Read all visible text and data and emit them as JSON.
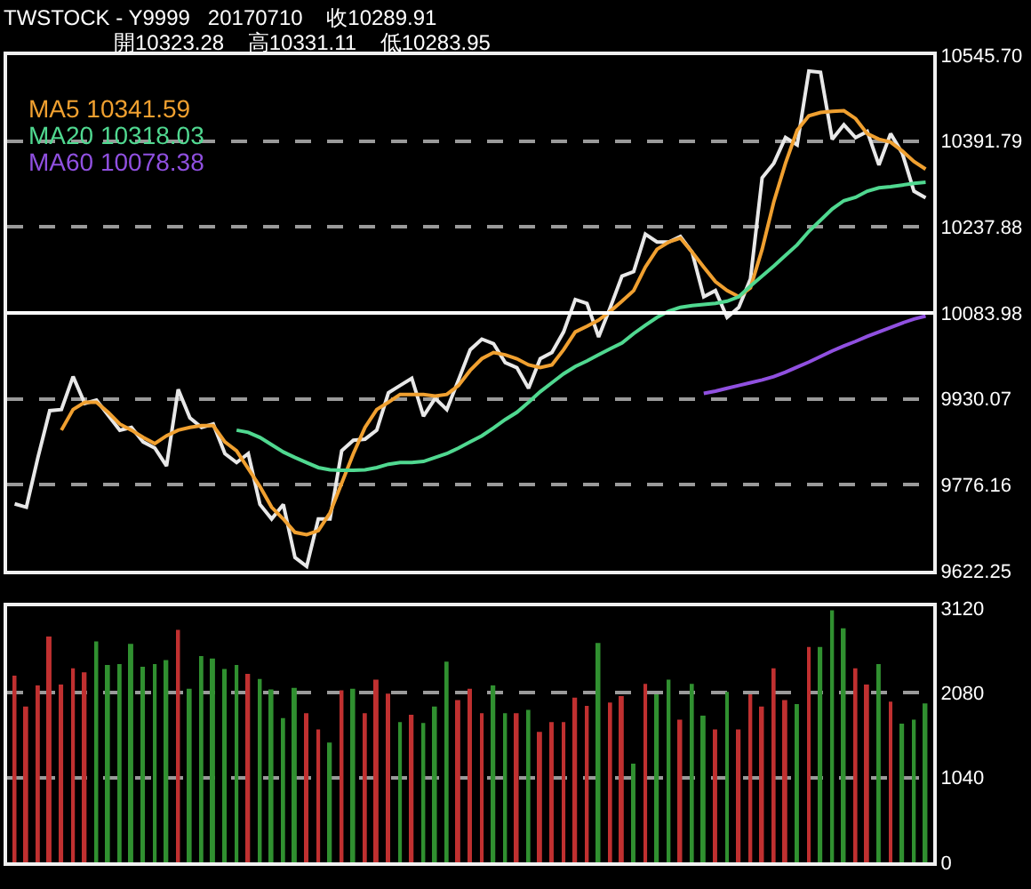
{
  "chart_data": [
    {
      "type": "line",
      "title": "TWSTOCK - Y9999   20170710    收10289.91",
      "subtitle": "開10323.28    高10331.11    低10283.95",
      "categories": [
        null,
        null,
        null,
        null,
        null,
        null,
        null,
        null,
        null,
        null,
        null,
        null,
        null,
        null,
        null,
        null,
        null,
        null,
        null,
        null,
        null,
        null,
        null,
        null,
        null,
        null,
        null,
        null,
        null,
        null,
        null,
        null,
        null,
        null,
        null,
        null,
        null,
        null,
        null,
        null,
        null,
        null,
        null,
        null,
        null,
        null,
        null,
        null,
        null,
        null,
        null,
        null,
        null,
        null,
        null,
        null,
        null,
        null,
        null,
        null,
        null,
        null,
        null,
        null,
        null,
        null,
        null,
        null,
        null,
        null,
        null,
        null,
        null,
        null,
        null,
        null,
        null,
        null,
        null
      ],
      "series": [
        {
          "color": "#e8e8e8",
          "values": [
            9742,
            9736,
            9826,
            9909,
            9911,
            9970,
            9922,
            9928,
            9901,
            9874,
            9879,
            9853,
            9842,
            9810,
            9947,
            9896,
            9879,
            9885,
            9832,
            9816,
            9832,
            9741,
            9715,
            9741,
            9646,
            9630,
            9715,
            9715,
            9837,
            9856,
            9858,
            9874,
            9941,
            9954,
            9967,
            9899,
            9931,
            9911,
            9964,
            10018,
            10037,
            10029,
            9995,
            9986,
            9949,
            10002,
            10013,
            10050,
            10108,
            10101,
            10041,
            10094,
            10150,
            10158,
            10225,
            10211,
            10211,
            10221,
            10193,
            10113,
            10124,
            10076,
            10094,
            10145,
            10326,
            10352,
            10398,
            10385,
            10517,
            10515,
            10395,
            10421,
            10398,
            10409,
            10349,
            10405,
            10370,
            10302,
            10290
          ]
        },
        {
          "name": "MA5 10341.59",
          "color": "#f0a030",
          "values": [
            null,
            null,
            null,
            null,
            9874,
            9911,
            9924,
            9924,
            9906,
            9885,
            9874,
            9861,
            9850,
            9864,
            9874,
            9879,
            9882,
            9882,
            9853,
            9837,
            9805,
            9773,
            9736,
            9715,
            9691,
            9687,
            9694,
            9726,
            9779,
            9832,
            9879,
            9911,
            9924,
            9938,
            9938,
            9938,
            9935,
            9938,
            9954,
            9981,
            10002,
            10013,
            10009,
            10002,
            9991,
            9986,
            9991,
            10018,
            10050,
            10060,
            10071,
            10087,
            10105,
            10124,
            10166,
            10198,
            10211,
            10218,
            10193,
            10166,
            10140,
            10124,
            10113,
            10129,
            10198,
            10283,
            10352,
            10411,
            10437,
            10443,
            10445,
            10446,
            10432,
            10405,
            10395,
            10390,
            10374,
            10355,
            10341.59
          ]
        },
        {
          "name": "MA20 10318.03",
          "color": "#50d890",
          "values": [
            null,
            null,
            null,
            null,
            null,
            null,
            null,
            null,
            null,
            null,
            null,
            null,
            null,
            null,
            null,
            null,
            null,
            null,
            null,
            9874,
            9870,
            9861,
            9848,
            9835,
            9825,
            9816,
            9807,
            9803,
            9802,
            9802,
            9803,
            9807,
            9813,
            9816,
            9816,
            9818,
            9825,
            9832,
            9842,
            9853,
            9864,
            9878,
            9893,
            9906,
            9924,
            9943,
            9959,
            9975,
            9988,
            9998,
            10009,
            10020,
            10030,
            10047,
            10062,
            10076,
            10087,
            10094,
            10097,
            10099,
            10101,
            10105,
            10113,
            10132,
            10150,
            10168,
            10187,
            10206,
            10230,
            10250,
            10270,
            10285,
            10291,
            10302,
            10308,
            10310,
            10313,
            10316,
            10318.03
          ]
        },
        {
          "name": "MA60 10078.38",
          "color": "#9050e0",
          "values": [
            null,
            null,
            null,
            null,
            null,
            null,
            null,
            null,
            null,
            null,
            null,
            null,
            null,
            null,
            null,
            null,
            null,
            null,
            null,
            null,
            null,
            null,
            null,
            null,
            null,
            null,
            null,
            null,
            null,
            null,
            null,
            null,
            null,
            null,
            null,
            null,
            null,
            null,
            null,
            null,
            null,
            null,
            null,
            null,
            null,
            null,
            null,
            null,
            null,
            null,
            null,
            null,
            null,
            null,
            null,
            null,
            null,
            null,
            null,
            9940,
            9944,
            9949,
            9954,
            9959,
            9964,
            9970,
            9978,
            9987,
            9996,
            10006,
            10016,
            10025,
            10033,
            10042,
            10050,
            10058,
            10066,
            10073,
            10078.38
          ]
        }
      ],
      "ylim": [
        9622.25,
        10545.7
      ],
      "yticks": [
        {
          "value": 9622.25,
          "label": "9622.25"
        },
        {
          "value": 9776.16,
          "label": "9776.16"
        },
        {
          "value": 9930.07,
          "label": "9930.07"
        },
        {
          "value": 10083.98,
          "label": "10083.98"
        },
        {
          "value": 10237.88,
          "label": "10237.88"
        },
        {
          "value": 10391.79,
          "label": "10391.79"
        },
        {
          "value": 10545.7,
          "label": "10545.70"
        }
      ],
      "ref_lines": [
        {
          "axis": "y",
          "value": 10083.98,
          "color": "#ffffff"
        }
      ],
      "grid": "y",
      "legend": false,
      "tick_labels": "y"
    },
    {
      "type": "bar",
      "categories": [
        null,
        null,
        null,
        null,
        null,
        null,
        null,
        null,
        null,
        null,
        null,
        null,
        null,
        null,
        null,
        null,
        null,
        null,
        null,
        null,
        null,
        null,
        null,
        null,
        null,
        null,
        null,
        null,
        null,
        null,
        null,
        null,
        null,
        null,
        null,
        null,
        null,
        null,
        null,
        null,
        null,
        null,
        null,
        null,
        null,
        null,
        null,
        null,
        null,
        null,
        null,
        null,
        null,
        null,
        null,
        null,
        null,
        null,
        null,
        null,
        null,
        null,
        null,
        null,
        null,
        null,
        null,
        null,
        null,
        null,
        null,
        null,
        null,
        null,
        null,
        null,
        null,
        null,
        null
      ],
      "values": [
        2290,
        1910,
        2170,
        2770,
        2180,
        2380,
        2330,
        2710,
        2420,
        2430,
        2680,
        2400,
        2430,
        2480,
        2850,
        2130,
        2530,
        2500,
        2370,
        2420,
        2310,
        2250,
        2120,
        1770,
        2140,
        1830,
        1630,
        1470,
        2110,
        2130,
        1830,
        2240,
        2070,
        1720,
        1810,
        1710,
        1910,
        2460,
        1990,
        2130,
        1830,
        2170,
        1830,
        1830,
        1870,
        1600,
        1720,
        1720,
        2020,
        1920,
        2690,
        1960,
        2040,
        1210,
        2190,
        2060,
        2240,
        1750,
        2190,
        1800,
        1630,
        2090,
        1630,
        2060,
        1910,
        2380,
        1990,
        1940,
        2640,
        2640,
        3090,
        2870,
        2380,
        2180,
        2430,
        1970,
        1700,
        1750,
        1950
      ],
      "colors": [
        "#c03030",
        "#c03030",
        "#c03030",
        "#c03030",
        "#c03030",
        "#c03030",
        "#c03030",
        "#309030",
        "#309030",
        "#309030",
        "#309030",
        "#309030",
        "#309030",
        "#309030",
        "#c03030",
        "#309030",
        "#309030",
        "#309030",
        "#309030",
        "#309030",
        "#c03030",
        "#309030",
        "#309030",
        "#309030",
        "#309030",
        "#c03030",
        "#c03030",
        "#309030",
        "#c03030",
        "#309030",
        "#c03030",
        "#c03030",
        "#c03030",
        "#309030",
        "#c03030",
        "#309030",
        "#309030",
        "#309030",
        "#c03030",
        "#c03030",
        "#c03030",
        "#309030",
        "#309030",
        "#c03030",
        "#309030",
        "#c03030",
        "#c03030",
        "#c03030",
        "#c03030",
        "#c03030",
        "#309030",
        "#c03030",
        "#c03030",
        "#309030",
        "#c03030",
        "#309030",
        "#309030",
        "#c03030",
        "#309030",
        "#309030",
        "#c03030",
        "#309030",
        "#c03030",
        "#c03030",
        "#c03030",
        "#c03030",
        "#c03030",
        "#309030",
        "#c03030",
        "#309030",
        "#309030",
        "#309030",
        "#c03030",
        "#c03030",
        "#309030",
        "#c03030",
        "#309030",
        "#309030",
        "#309030"
      ],
      "ylim": [
        0,
        3140
      ],
      "yticks": [
        0,
        1040,
        2080,
        3120
      ],
      "grid": "y",
      "legend": false,
      "tick_labels": "y"
    }
  ]
}
